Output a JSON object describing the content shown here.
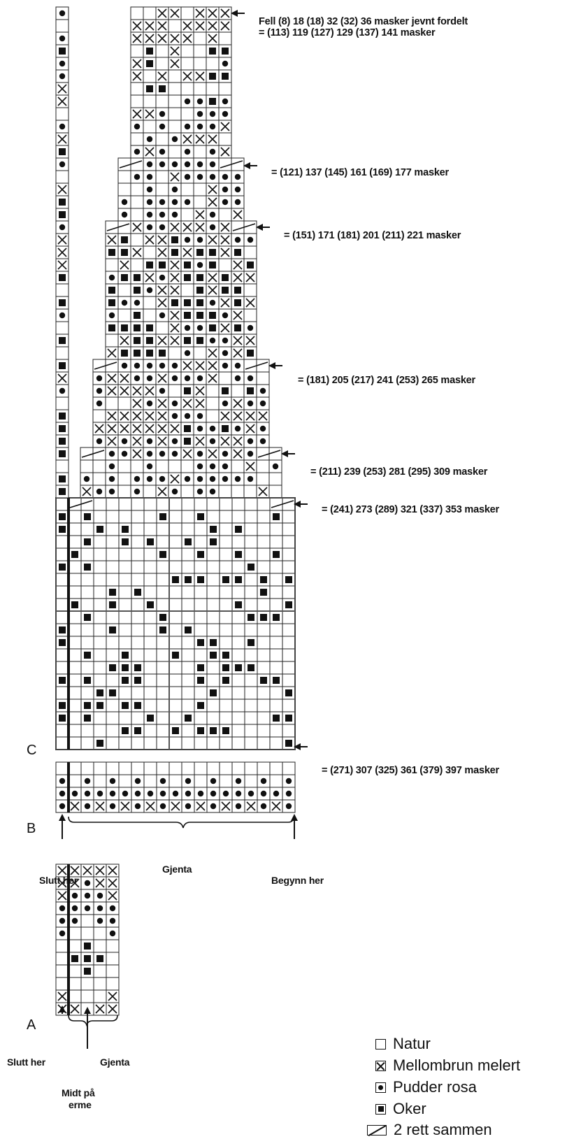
{
  "legend": {
    "natur": "Natur",
    "mellombrun": "Mellombrun melert",
    "pudder": "Pudder rosa",
    "oker": "Oker",
    "k2tog": "2 rett sammen"
  },
  "labels": {
    "decrease_row1": "Fell (8) 18 (18) 32 (32) 36 masker jevnt fordelt",
    "decrease_row2": "= (113) 119 (127) 129 (137) 141 masker",
    "count_121": "= (121) 137 (145) 161 (169) 177 masker",
    "count_151": "= (151) 171 (181) 201 (211) 221 masker",
    "count_181": "= (181) 205 (217) 241 (253) 265 masker",
    "count_211": "= (211) 239 (253) 281 (295) 309 masker",
    "count_241": "= (241) 273 (289) 321 (337) 353 masker",
    "count_271": "= (271) 307 (325) 361 (379) 397 masker",
    "chart_c": "C",
    "chart_b": "B",
    "chart_a": "A",
    "slutt_her_b": "Slutt her",
    "gjenta_b": "Gjenta",
    "begynn_her": "Begynn her",
    "slutt_her_a": "Slutt her",
    "gjenta_a": "Gjenta",
    "midt_pa": "Midt på",
    "erme": "erme"
  },
  "colors": {
    "ink": "#111111",
    "grid": "#222222",
    "background": "#ffffff"
  },
  "symbols": {
    "empty": "natur",
    "x": "mellombrun melert",
    "dot": "pudder rosa",
    "square": "oker",
    "slash": "2 rett sammen"
  }
}
